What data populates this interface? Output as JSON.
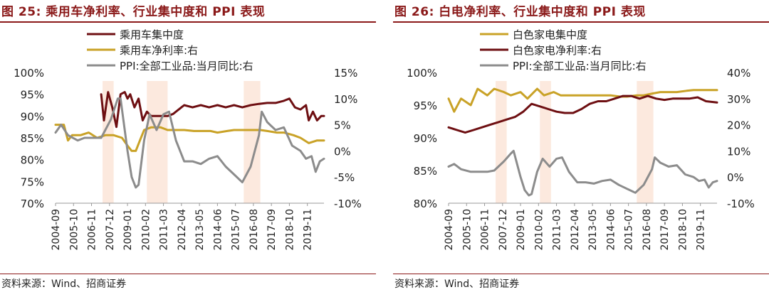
{
  "chart_data": [
    {
      "type": "line",
      "title": "图 25:  乘用车净利率、行业集中度和 PPI 表现",
      "source": "资料来源：Wind、招商证券",
      "x_ticks": [
        "2004-09",
        "2005-10",
        "2006-11",
        "2007-12",
        "2009-01",
        "2010-02",
        "2011-03",
        "2012-04",
        "2013-05",
        "2014-06",
        "2015-07",
        "2016-08",
        "2017-09",
        "2018-10",
        "2019-11"
      ],
      "x_range": [
        "2004-09",
        "2020-11"
      ],
      "y_left": {
        "ticks": [
          "100%",
          "95%",
          "90%",
          "85%",
          "80%",
          "75%",
          "70%"
        ],
        "range": [
          70,
          100
        ]
      },
      "y_right": {
        "ticks": [
          "15%",
          "10%",
          "5%",
          "0%",
          "-5%",
          "-10%"
        ],
        "range": [
          -10,
          15
        ]
      },
      "shaded_periods": [
        [
          "2007-07",
          "2008-03"
        ],
        [
          "2010-03",
          "2011-06"
        ],
        [
          "2016-01",
          "2017-01"
        ]
      ],
      "legend_placement": "top-left",
      "series": [
        {
          "name": "乘用车集中度",
          "axis": "left",
          "color": "#6e0f12",
          "points": [
            [
              "2007-06",
              95.0
            ],
            [
              "2007-08",
              89.0
            ],
            [
              "2007-11",
              95.5
            ],
            [
              "2008-02",
              92.0
            ],
            [
              "2008-05",
              87.5
            ],
            [
              "2008-08",
              95.0
            ],
            [
              "2008-11",
              95.5
            ],
            [
              "2009-01",
              94.0
            ],
            [
              "2009-03",
              95.0
            ],
            [
              "2009-06",
              92.0
            ],
            [
              "2009-09",
              94.0
            ],
            [
              "2009-12",
              89.0
            ],
            [
              "2010-03",
              91.0
            ],
            [
              "2010-06",
              90.0
            ],
            [
              "2010-12",
              90.0
            ],
            [
              "2011-06",
              90.0
            ],
            [
              "2011-10",
              90.5
            ],
            [
              "2012-02",
              91.5
            ],
            [
              "2012-06",
              92.5
            ],
            [
              "2012-12",
              92.0
            ],
            [
              "2013-06",
              92.5
            ],
            [
              "2013-12",
              92.0
            ],
            [
              "2014-06",
              92.5
            ],
            [
              "2014-12",
              92.0
            ],
            [
              "2015-06",
              92.5
            ],
            [
              "2015-12",
              92.0
            ],
            [
              "2016-06",
              92.5
            ],
            [
              "2016-12",
              92.8
            ],
            [
              "2017-06",
              93.0
            ],
            [
              "2017-12",
              93.0
            ],
            [
              "2018-06",
              93.5
            ],
            [
              "2018-10",
              94.0
            ],
            [
              "2019-02",
              92.0
            ],
            [
              "2019-06",
              91.5
            ],
            [
              "2019-10",
              92.5
            ],
            [
              "2019-12",
              89.0
            ],
            [
              "2020-03",
              91.0
            ],
            [
              "2020-06",
              89.0
            ],
            [
              "2020-09",
              90.0
            ],
            [
              "2020-11",
              90.0
            ]
          ]
        },
        {
          "name": "乘用车净利率:右",
          "axis": "right",
          "color": "#c9a227",
          "points": [
            [
              "2004-09",
              5.0
            ],
            [
              "2005-03",
              5.0
            ],
            [
              "2005-06",
              2.0
            ],
            [
              "2005-09",
              3.0
            ],
            [
              "2006-03",
              3.0
            ],
            [
              "2006-09",
              3.5
            ],
            [
              "2007-03",
              2.5
            ],
            [
              "2007-09",
              3.0
            ],
            [
              "2008-03",
              3.0
            ],
            [
              "2008-09",
              2.5
            ],
            [
              "2009-01",
              1.0
            ],
            [
              "2009-04",
              0.0
            ],
            [
              "2009-07",
              0.0
            ],
            [
              "2009-10",
              2.0
            ],
            [
              "2010-01",
              4.0
            ],
            [
              "2010-06",
              4.5
            ],
            [
              "2011-01",
              4.5
            ],
            [
              "2011-06",
              4.0
            ],
            [
              "2012-01",
              4.0
            ],
            [
              "2012-06",
              4.0
            ],
            [
              "2013-01",
              3.8
            ],
            [
              "2013-06",
              3.8
            ],
            [
              "2014-01",
              3.8
            ],
            [
              "2014-06",
              3.5
            ],
            [
              "2015-01",
              3.8
            ],
            [
              "2015-06",
              4.0
            ],
            [
              "2016-01",
              4.0
            ],
            [
              "2016-06",
              4.0
            ],
            [
              "2017-01",
              4.0
            ],
            [
              "2017-06",
              3.8
            ],
            [
              "2018-01",
              3.5
            ],
            [
              "2018-06",
              3.5
            ],
            [
              "2019-01",
              3.0
            ],
            [
              "2019-06",
              2.5
            ],
            [
              "2019-12",
              1.5
            ],
            [
              "2020-06",
              2.0
            ],
            [
              "2020-11",
              2.0
            ]
          ]
        },
        {
          "name": "PPI:全部工业品:当月同比:右",
          "axis": "right",
          "color": "#8c8c8c",
          "points": [
            [
              "2004-09",
              3.5
            ],
            [
              "2005-01",
              5.0
            ],
            [
              "2005-06",
              3.0
            ],
            [
              "2006-01",
              2.0
            ],
            [
              "2006-06",
              2.5
            ],
            [
              "2007-01",
              2.5
            ],
            [
              "2007-06",
              2.5
            ],
            [
              "2008-01",
              6.0
            ],
            [
              "2008-06",
              10.0
            ],
            [
              "2008-08",
              10.0
            ],
            [
              "2009-01",
              0.0
            ],
            [
              "2009-04",
              -5.0
            ],
            [
              "2009-07",
              -7.0
            ],
            [
              "2009-09",
              -6.5
            ],
            [
              "2010-01",
              2.0
            ],
            [
              "2010-05",
              7.0
            ],
            [
              "2010-10",
              4.0
            ],
            [
              "2011-03",
              7.0
            ],
            [
              "2011-07",
              7.5
            ],
            [
              "2011-12",
              2.0
            ],
            [
              "2012-06",
              -2.0
            ],
            [
              "2012-12",
              -2.0
            ],
            [
              "2013-06",
              -2.5
            ],
            [
              "2013-12",
              -1.5
            ],
            [
              "2014-06",
              -1.0
            ],
            [
              "2014-12",
              -3.0
            ],
            [
              "2015-06",
              -4.5
            ],
            [
              "2015-12",
              -6.0
            ],
            [
              "2016-06",
              -3.0
            ],
            [
              "2016-12",
              3.0
            ],
            [
              "2017-02",
              7.5
            ],
            [
              "2017-06",
              5.5
            ],
            [
              "2017-12",
              4.0
            ],
            [
              "2018-06",
              4.5
            ],
            [
              "2018-12",
              1.0
            ],
            [
              "2019-06",
              0.0
            ],
            [
              "2019-10",
              -1.5
            ],
            [
              "2020-02",
              -1.0
            ],
            [
              "2020-05",
              -4.0
            ],
            [
              "2020-08",
              -2.0
            ],
            [
              "2020-11",
              -1.5
            ]
          ]
        }
      ]
    },
    {
      "type": "line",
      "title": "图 26:  白电净利率、行业集中度和 PPI 表现",
      "source": "资料来源：Wind、招商证券",
      "x_ticks": [
        "2004-09",
        "2005-10",
        "2006-11",
        "2007-12",
        "2009-01",
        "2010-02",
        "2011-03",
        "2012-04",
        "2013-05",
        "2014-06",
        "2015-07",
        "2016-08",
        "2017-09",
        "2018-10",
        "2019-11"
      ],
      "x_range": [
        "2004-09",
        "2020-11"
      ],
      "y_left": {
        "ticks": [
          "100%",
          "95%",
          "90%",
          "85%",
          "80%"
        ],
        "range": [
          80,
          100
        ]
      },
      "y_right": {
        "ticks": [
          "40%",
          "30%",
          "20%",
          "10%",
          "0%",
          "-10%"
        ],
        "range": [
          -10,
          40
        ]
      },
      "shaded_periods": [
        [
          "2007-07",
          "2008-03"
        ],
        [
          "2010-03",
          "2010-11"
        ],
        [
          "2016-01",
          "2017-01"
        ]
      ],
      "legend_placement": "top-left",
      "series": [
        {
          "name": "白色家电集中度",
          "axis": "left",
          "color": "#c9a227",
          "points": [
            [
              "2004-09",
              96.0
            ],
            [
              "2005-01",
              94.0
            ],
            [
              "2005-06",
              96.0
            ],
            [
              "2006-01",
              95.0
            ],
            [
              "2006-06",
              97.5
            ],
            [
              "2007-01",
              96.5
            ],
            [
              "2007-06",
              97.5
            ],
            [
              "2008-01",
              97.0
            ],
            [
              "2008-06",
              96.5
            ],
            [
              "2009-01",
              97.0
            ],
            [
              "2009-06",
              96.0
            ],
            [
              "2010-01",
              97.5
            ],
            [
              "2010-06",
              96.5
            ],
            [
              "2011-01",
              97.0
            ],
            [
              "2011-06",
              96.5
            ],
            [
              "2012-01",
              96.5
            ],
            [
              "2012-06",
              96.5
            ],
            [
              "2013-01",
              96.5
            ],
            [
              "2013-06",
              96.5
            ],
            [
              "2014-01",
              96.5
            ],
            [
              "2014-06",
              96.5
            ],
            [
              "2015-01",
              96.3
            ],
            [
              "2015-06",
              96.3
            ],
            [
              "2016-01",
              96.5
            ],
            [
              "2016-06",
              96.5
            ],
            [
              "2017-01",
              96.8
            ],
            [
              "2017-06",
              97.0
            ],
            [
              "2018-01",
              97.0
            ],
            [
              "2018-06",
              97.0
            ],
            [
              "2019-01",
              97.2
            ],
            [
              "2019-06",
              97.3
            ],
            [
              "2020-01",
              97.3
            ],
            [
              "2020-11",
              97.3
            ]
          ]
        },
        {
          "name": "白色家电净利率:右",
          "axis": "right",
          "color": "#6e0f12",
          "points": [
            [
              "2004-09",
              19.0
            ],
            [
              "2005-03",
              18.0
            ],
            [
              "2005-09",
              17.0
            ],
            [
              "2006-03",
              18.0
            ],
            [
              "2006-09",
              19.0
            ],
            [
              "2007-03",
              20.0
            ],
            [
              "2007-09",
              21.0
            ],
            [
              "2008-03",
              22.0
            ],
            [
              "2008-09",
              23.0
            ],
            [
              "2009-03",
              25.0
            ],
            [
              "2009-09",
              28.0
            ],
            [
              "2010-03",
              27.0
            ],
            [
              "2010-09",
              26.0
            ],
            [
              "2011-03",
              25.0
            ],
            [
              "2011-09",
              24.5
            ],
            [
              "2012-03",
              24.5
            ],
            [
              "2012-09",
              26.0
            ],
            [
              "2013-03",
              28.0
            ],
            [
              "2013-09",
              29.0
            ],
            [
              "2014-03",
              29.0
            ],
            [
              "2014-09",
              30.0
            ],
            [
              "2015-03",
              31.0
            ],
            [
              "2015-09",
              31.0
            ],
            [
              "2016-03",
              30.0
            ],
            [
              "2016-09",
              31.0
            ],
            [
              "2017-03",
              30.0
            ],
            [
              "2017-09",
              29.5
            ],
            [
              "2018-03",
              30.0
            ],
            [
              "2018-09",
              30.0
            ],
            [
              "2019-03",
              30.0
            ],
            [
              "2019-09",
              30.5
            ],
            [
              "2020-03",
              29.0
            ],
            [
              "2020-11",
              28.5
            ]
          ]
        },
        {
          "name": "PPI:全部工业品:当月同比:右",
          "axis": "right",
          "color": "#8c8c8c",
          "points": [
            [
              "2004-09",
              4.0
            ],
            [
              "2005-01",
              5.0
            ],
            [
              "2005-06",
              3.0
            ],
            [
              "2006-01",
              2.0
            ],
            [
              "2006-06",
              2.0
            ],
            [
              "2007-01",
              2.0
            ],
            [
              "2007-06",
              2.5
            ],
            [
              "2008-01",
              6.0
            ],
            [
              "2008-06",
              9.0
            ],
            [
              "2008-08",
              10.0
            ],
            [
              "2009-01",
              0.0
            ],
            [
              "2009-04",
              -5.0
            ],
            [
              "2009-07",
              -7.0
            ],
            [
              "2009-09",
              -6.5
            ],
            [
              "2010-01",
              2.0
            ],
            [
              "2010-05",
              7.0
            ],
            [
              "2010-10",
              4.0
            ],
            [
              "2011-03",
              7.0
            ],
            [
              "2011-07",
              7.5
            ],
            [
              "2011-12",
              2.0
            ],
            [
              "2012-06",
              -2.0
            ],
            [
              "2012-12",
              -2.0
            ],
            [
              "2013-06",
              -2.5
            ],
            [
              "2013-12",
              -1.5
            ],
            [
              "2014-06",
              -1.0
            ],
            [
              "2014-12",
              -3.0
            ],
            [
              "2015-06",
              -4.5
            ],
            [
              "2015-12",
              -6.0
            ],
            [
              "2016-06",
              -3.0
            ],
            [
              "2016-12",
              3.0
            ],
            [
              "2017-02",
              7.5
            ],
            [
              "2017-06",
              5.5
            ],
            [
              "2017-12",
              4.0
            ],
            [
              "2018-06",
              4.5
            ],
            [
              "2018-12",
              1.0
            ],
            [
              "2019-06",
              0.0
            ],
            [
              "2019-10",
              -1.5
            ],
            [
              "2020-02",
              -1.0
            ],
            [
              "2020-05",
              -4.0
            ],
            [
              "2020-08",
              -2.0
            ],
            [
              "2020-11",
              -1.5
            ]
          ]
        }
      ]
    }
  ]
}
